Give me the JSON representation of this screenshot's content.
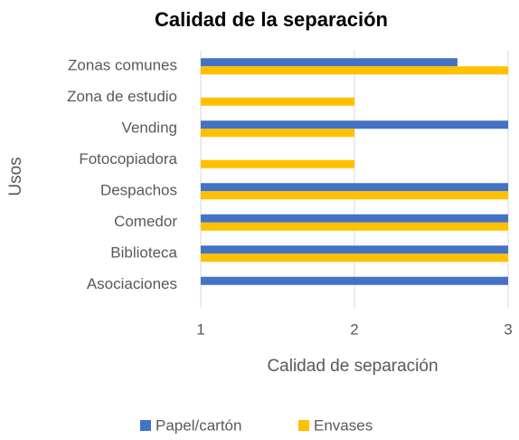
{
  "chart_data": {
    "type": "hbar",
    "title": "Calidad de la separación",
    "xlabel": "Calidad de separación",
    "ylabel": "Usos",
    "categories": [
      "Zonas comunes",
      "Zona de estudio",
      "Vending",
      "Fotocopiadora",
      "Despachos",
      "Comedor",
      "Biblioteca",
      "Asociaciones"
    ],
    "series": [
      {
        "name": "Papel/cartón",
        "color": "#4472c4",
        "values": [
          2.67,
          1,
          3,
          1,
          3,
          3,
          3,
          3
        ]
      },
      {
        "name": "Envases",
        "color": "#ffc000",
        "values": [
          3,
          2,
          2,
          2,
          3,
          3,
          3,
          1
        ]
      }
    ],
    "xlim": [
      1,
      3
    ],
    "xticks": [
      1,
      2,
      3
    ],
    "grid": true,
    "legend": "bottom"
  }
}
